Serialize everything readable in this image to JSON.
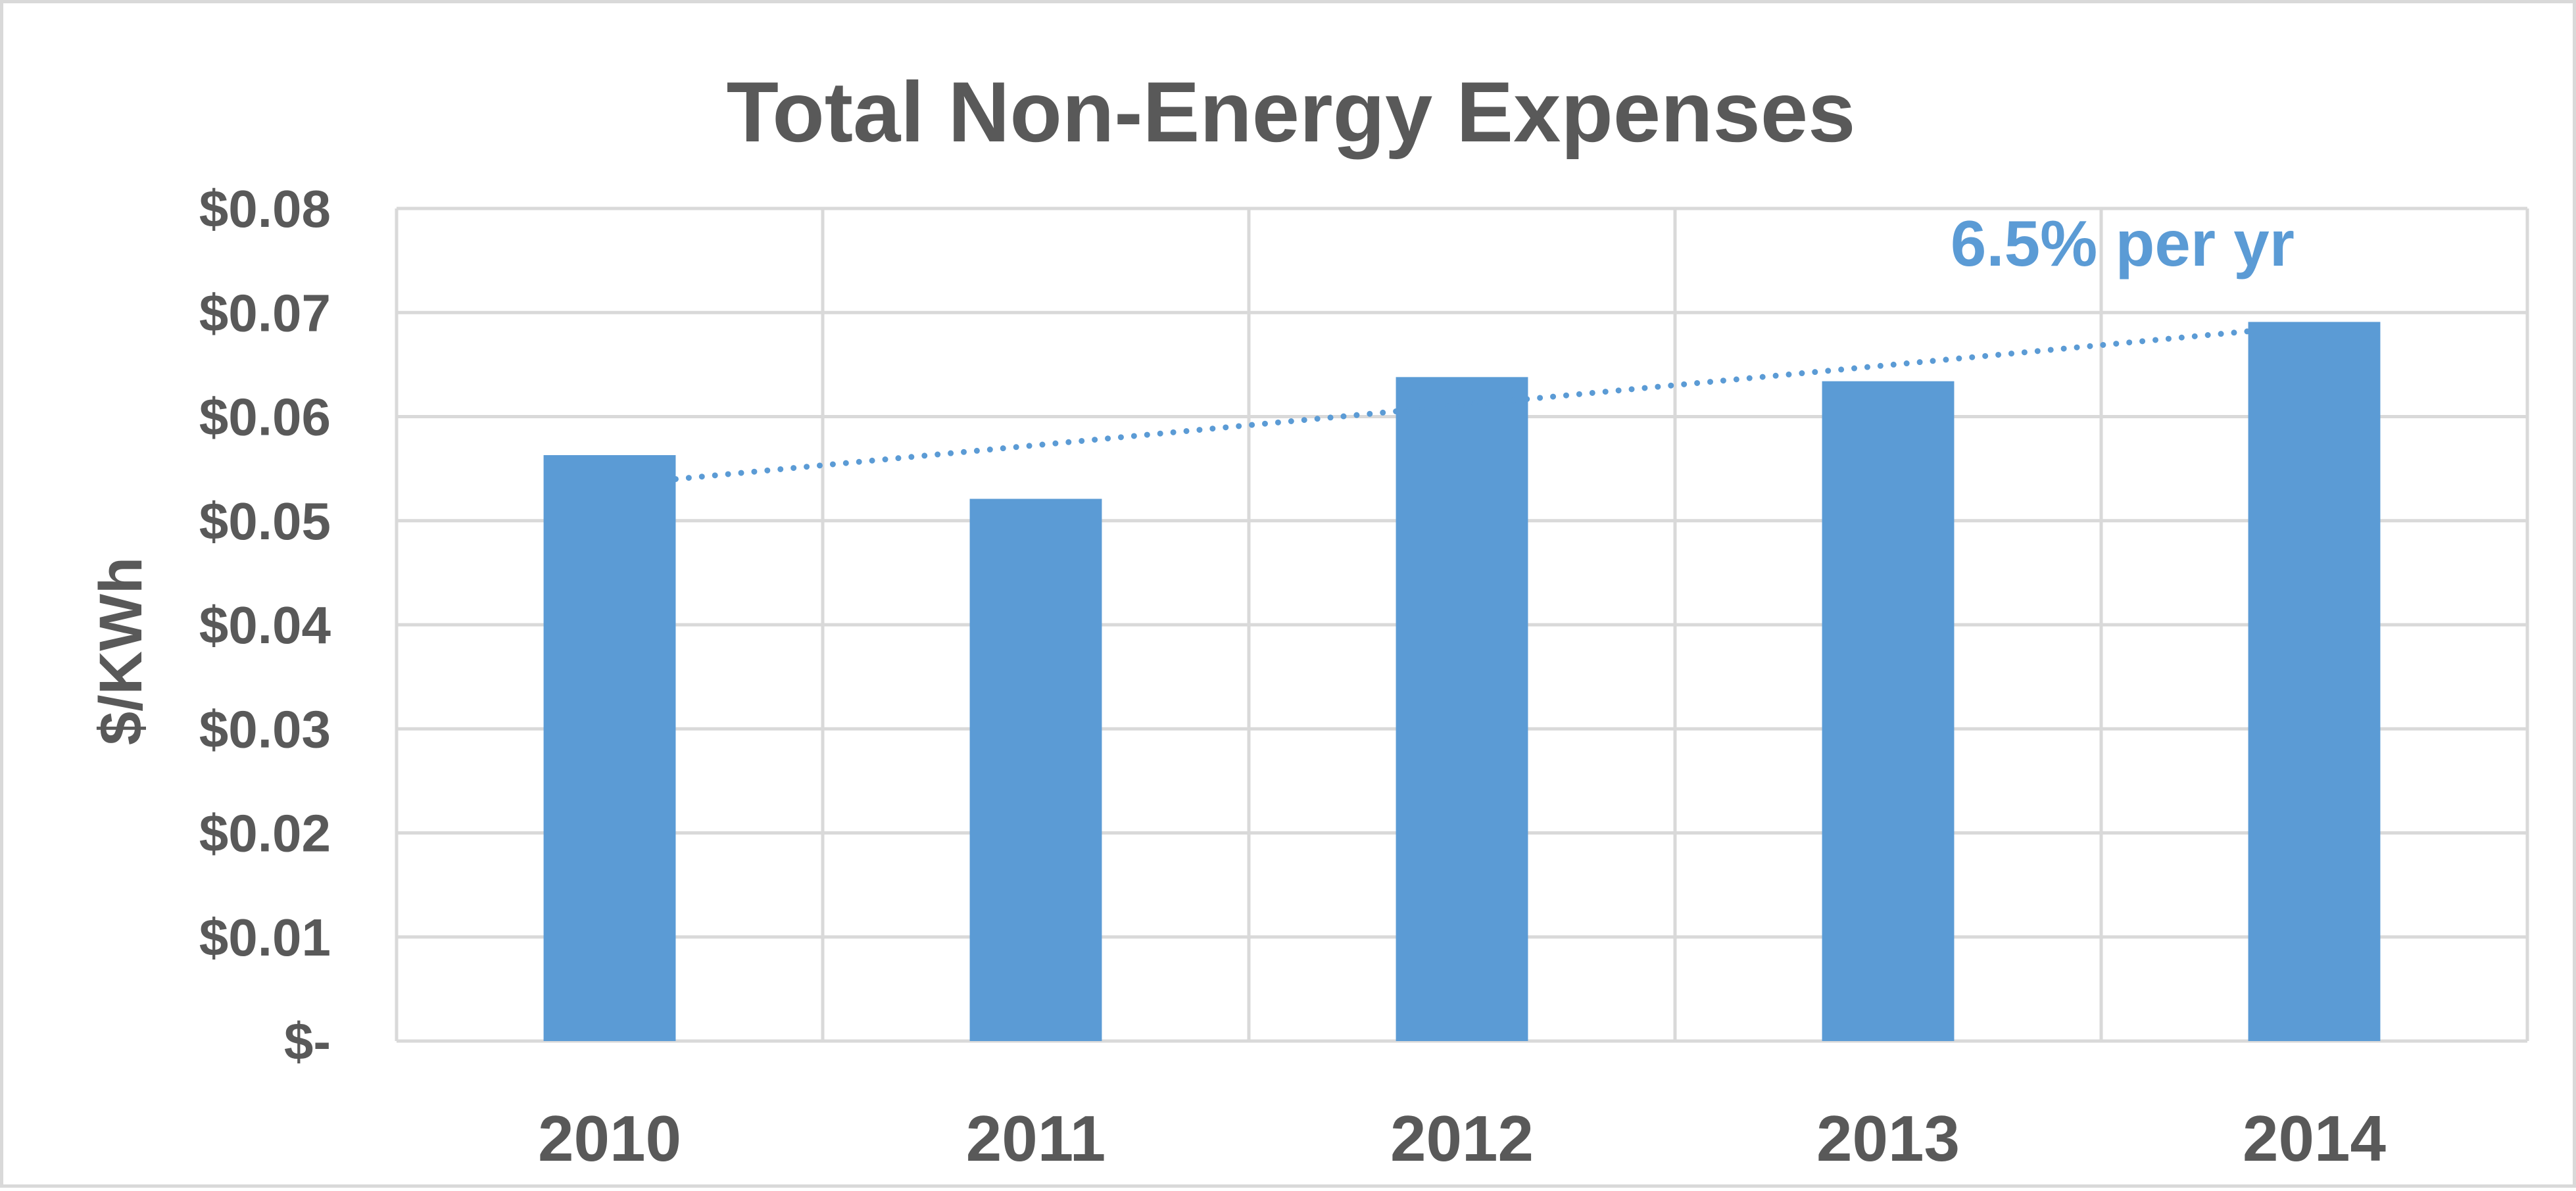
{
  "chart_data": {
    "type": "bar",
    "title": "Total Non-Energy Expenses",
    "ylabel": "$/KWh",
    "xlabel": "",
    "categories": [
      "2010",
      "2011",
      "2012",
      "2013",
      "2014"
    ],
    "series": [
      {
        "values": [
          0.0563,
          0.0521,
          0.0638,
          0.0634,
          0.0691
        ]
      }
    ],
    "ylim": [
      0,
      0.08
    ],
    "yticks": [
      0,
      0.01,
      0.02,
      0.03,
      0.04,
      0.05,
      0.06,
      0.07,
      0.08
    ],
    "ytick_labels": [
      "$-",
      "$0.01",
      "$0.02",
      "$0.03",
      "$0.04",
      "$0.05",
      "$0.06",
      "$0.07",
      "$0.08"
    ],
    "grid": true,
    "trendline": {
      "style": "dotted",
      "label": "6.5% per yr",
      "start": {
        "x": "2010",
        "y": 0.054
      },
      "end": {
        "x": "2014",
        "y": 0.0682
      }
    },
    "colors": {
      "bar": "#5b9bd5",
      "trendline": "#5b9bd5",
      "text": "#595959",
      "grid": "#d9d9d9"
    }
  }
}
